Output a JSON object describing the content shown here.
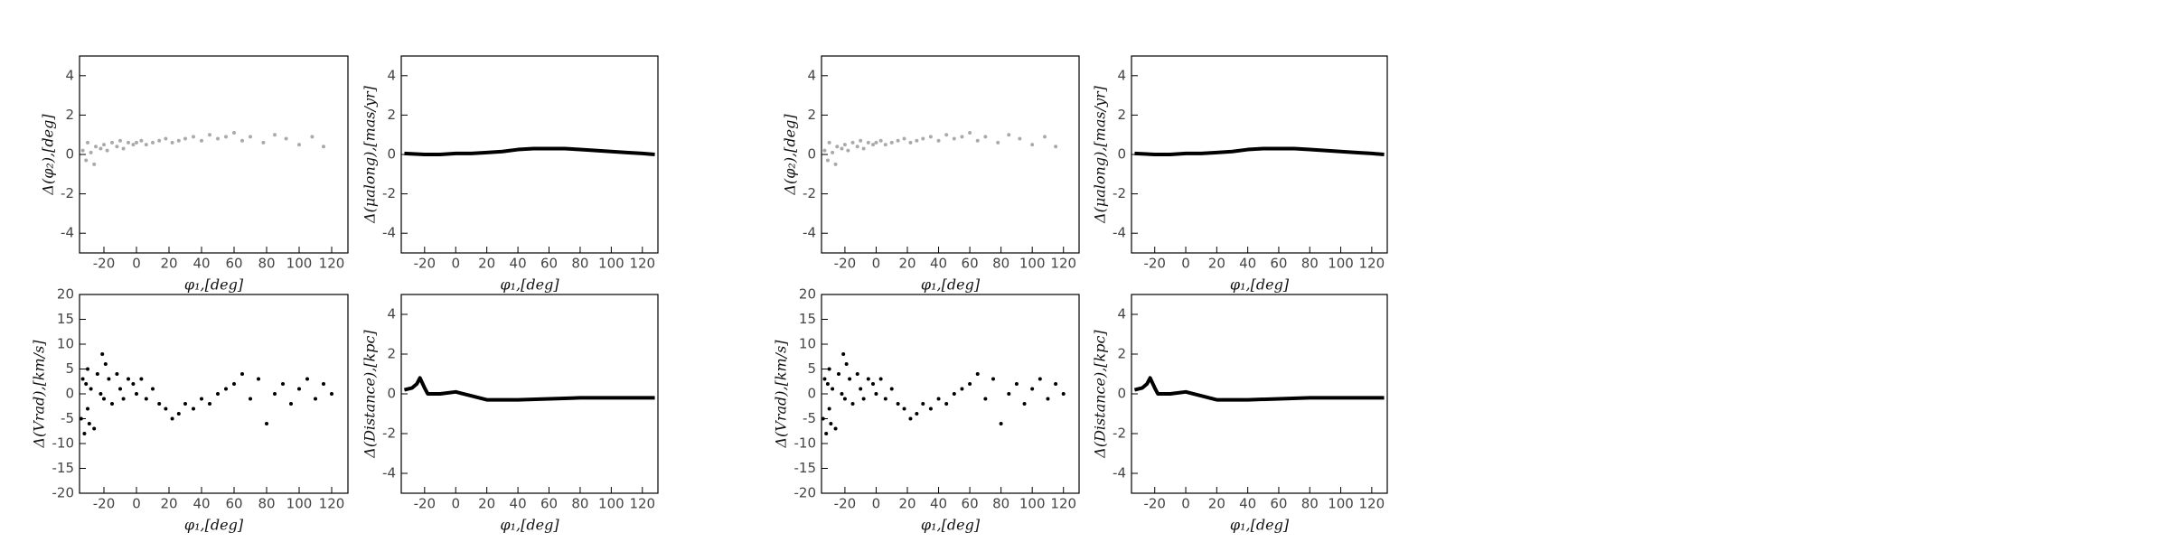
{
  "chart_data": [
    {
      "type": "scatter",
      "ylabel": "Δ(φ₂),[deg]",
      "xlabel": "φ₁,[deg]",
      "color": "#555555",
      "xlim": [
        -35,
        130
      ],
      "ylim": [
        -5,
        5
      ],
      "xticks": [
        -20,
        0,
        20,
        40,
        60,
        80,
        100,
        120
      ],
      "yticks": [
        -4,
        -2,
        0,
        2,
        4
      ],
      "x": [
        -33,
        -31,
        -30,
        -28,
        -26,
        -25,
        -22,
        -20,
        -18,
        -15,
        -12,
        -10,
        -8,
        -5,
        -2,
        0,
        3,
        6,
        10,
        14,
        18,
        22,
        26,
        30,
        35,
        40,
        45,
        50,
        55,
        60,
        65,
        70,
        78,
        85,
        92,
        100,
        108,
        115
      ],
      "y": [
        0.2,
        -0.3,
        0.6,
        0.1,
        -0.5,
        0.4,
        0.3,
        0.5,
        0.2,
        0.6,
        0.4,
        0.7,
        0.3,
        0.6,
        0.5,
        0.6,
        0.7,
        0.5,
        0.6,
        0.7,
        0.8,
        0.6,
        0.7,
        0.8,
        0.9,
        0.7,
        1.0,
        0.8,
        0.9,
        1.1,
        0.7,
        0.9,
        0.6,
        1.0,
        0.8,
        0.5,
        0.9,
        0.4
      ]
    },
    {
      "type": "line",
      "ylabel": "Δ(μalong),[mas/yr]",
      "xlabel": "φ₁,[deg]",
      "color": "#000000",
      "xlim": [
        -35,
        130
      ],
      "ylim": [
        -5,
        5
      ],
      "xticks": [
        -20,
        0,
        20,
        40,
        60,
        80,
        100,
        120
      ],
      "yticks": [
        -4,
        -2,
        0,
        2,
        4
      ],
      "x": [
        -33,
        -20,
        -10,
        0,
        10,
        20,
        30,
        40,
        50,
        60,
        70,
        80,
        90,
        100,
        110,
        120,
        128
      ],
      "values": [
        0.05,
        0.0,
        0.0,
        0.05,
        0.05,
        0.1,
        0.15,
        0.25,
        0.3,
        0.3,
        0.3,
        0.25,
        0.2,
        0.15,
        0.1,
        0.05,
        0.0
      ]
    },
    {
      "type": "scatter",
      "ylabel": "Δ(Vrad),[km/s]",
      "xlabel": "φ₁,[deg]",
      "color": "#000000",
      "xlim": [
        -35,
        130
      ],
      "ylim": [
        -20,
        20
      ],
      "xticks": [
        -20,
        0,
        20,
        40,
        60,
        80,
        100,
        120
      ],
      "yticks": [
        -20,
        -15,
        -10,
        -5,
        0,
        5,
        10,
        15,
        20
      ],
      "x": [
        -34,
        -33,
        -32,
        -31,
        -30,
        -30,
        -29,
        -28,
        -26,
        -24,
        -22,
        -21,
        -20,
        -19,
        -17,
        -15,
        -12,
        -10,
        -8,
        -5,
        -2,
        0,
        3,
        6,
        10,
        14,
        18,
        22,
        26,
        30,
        35,
        40,
        45,
        50,
        55,
        60,
        65,
        70,
        75,
        80,
        85,
        90,
        95,
        100,
        105,
        110,
        115,
        120
      ],
      "y": [
        -5,
        3,
        -8,
        2,
        -3,
        5,
        -6,
        1,
        -7,
        4,
        0,
        8,
        -1,
        6,
        3,
        -2,
        4,
        1,
        -1,
        3,
        2,
        0,
        3,
        -1,
        1,
        -2,
        -3,
        -5,
        -4,
        -2,
        -3,
        -1,
        -2,
        0,
        1,
        2,
        4,
        -1,
        3,
        -6,
        0,
        2,
        -2,
        1,
        3,
        -1,
        2,
        0
      ]
    },
    {
      "type": "line",
      "ylabel": "Δ(Distance),[kpc]",
      "xlabel": "φ₁,[deg]",
      "color": "#000000",
      "xlim": [
        -35,
        130
      ],
      "ylim": [
        -5,
        5
      ],
      "xticks": [
        -20,
        0,
        20,
        40,
        60,
        80,
        100,
        120
      ],
      "yticks": [
        -4,
        -2,
        0,
        2,
        4
      ],
      "x": [
        -33,
        -28,
        -25,
        -23,
        -20,
        -18,
        -10,
        0,
        10,
        20,
        40,
        80,
        128
      ],
      "values": [
        0.2,
        0.3,
        0.5,
        0.8,
        0.3,
        0.0,
        0.0,
        0.1,
        -0.1,
        -0.3,
        -0.3,
        -0.2,
        -0.2
      ]
    },
    {
      "type": "scatter",
      "ylabel": "Δ(φ₂),[deg]",
      "xlabel": "φ₁,[deg]",
      "color": "#555555",
      "xlim": [
        -35,
        130
      ],
      "ylim": [
        -5,
        5
      ],
      "xticks": [
        -20,
        0,
        20,
        40,
        60,
        80,
        100,
        120
      ],
      "yticks": [
        -4,
        -2,
        0,
        2,
        4
      ],
      "x": [
        -33,
        -31,
        -30,
        -28,
        -26,
        -25,
        -22,
        -20,
        -18,
        -15,
        -12,
        -10,
        -8,
        -5,
        -2,
        0,
        3,
        6,
        10,
        14,
        18,
        22,
        26,
        30,
        35,
        40,
        45,
        50,
        55,
        60,
        65,
        70,
        78,
        85,
        92,
        100,
        108,
        115
      ],
      "y": [
        0.2,
        -0.3,
        0.6,
        0.1,
        -0.5,
        0.4,
        0.3,
        0.5,
        0.2,
        0.6,
        0.4,
        0.7,
        0.3,
        0.6,
        0.5,
        0.6,
        0.7,
        0.5,
        0.6,
        0.7,
        0.8,
        0.6,
        0.7,
        0.8,
        0.9,
        0.7,
        1.0,
        0.8,
        0.9,
        1.1,
        0.7,
        0.9,
        0.6,
        1.0,
        0.8,
        0.5,
        0.9,
        0.4
      ]
    },
    {
      "type": "line",
      "ylabel": "Δ(μalong),[mas/yr]",
      "xlabel": "φ₁,[deg]",
      "color": "#000000",
      "xlim": [
        -35,
        130
      ],
      "ylim": [
        -5,
        5
      ],
      "xticks": [
        -20,
        0,
        20,
        40,
        60,
        80,
        100,
        120
      ],
      "yticks": [
        -4,
        -2,
        0,
        2,
        4
      ],
      "x": [
        -33,
        -20,
        -10,
        0,
        10,
        20,
        30,
        40,
        50,
        60,
        70,
        80,
        90,
        100,
        110,
        120,
        128
      ],
      "values": [
        0.05,
        0.0,
        0.0,
        0.05,
        0.05,
        0.1,
        0.15,
        0.25,
        0.3,
        0.3,
        0.3,
        0.25,
        0.2,
        0.15,
        0.1,
        0.05,
        0.0
      ]
    },
    {
      "type": "scatter",
      "ylabel": "Δ(Vrad),[km/s]",
      "xlabel": "φ₁,[deg]",
      "color": "#000000",
      "xlim": [
        -35,
        130
      ],
      "ylim": [
        -20,
        20
      ],
      "xticks": [
        -20,
        0,
        20,
        40,
        60,
        80,
        100,
        120
      ],
      "yticks": [
        -20,
        -15,
        -10,
        -5,
        0,
        5,
        10,
        15,
        20
      ],
      "x": [
        -34,
        -33,
        -32,
        -31,
        -30,
        -30,
        -29,
        -28,
        -26,
        -24,
        -22,
        -21,
        -20,
        -19,
        -17,
        -15,
        -12,
        -10,
        -8,
        -5,
        -2,
        0,
        3,
        6,
        10,
        14,
        18,
        22,
        26,
        30,
        35,
        40,
        45,
        50,
        55,
        60,
        65,
        70,
        75,
        80,
        85,
        90,
        95,
        100,
        105,
        110,
        115,
        120
      ],
      "y": [
        -5,
        3,
        -8,
        2,
        -3,
        5,
        -6,
        1,
        -7,
        4,
        0,
        8,
        -1,
        6,
        3,
        -2,
        4,
        1,
        -1,
        3,
        2,
        0,
        3,
        -1,
        1,
        -2,
        -3,
        -5,
        -4,
        -2,
        -3,
        -1,
        -2,
        0,
        1,
        2,
        4,
        -1,
        3,
        -6,
        0,
        2,
        -2,
        1,
        3,
        -1,
        2,
        0
      ]
    },
    {
      "type": "line",
      "ylabel": "Δ(Distance),[kpc]",
      "xlabel": "φ₁,[deg]",
      "color": "#000000",
      "xlim": [
        -35,
        130
      ],
      "ylim": [
        -5,
        5
      ],
      "xticks": [
        -20,
        0,
        20,
        40,
        60,
        80,
        100,
        120
      ],
      "yticks": [
        -4,
        -2,
        0,
        2,
        4
      ],
      "x": [
        -33,
        -28,
        -25,
        -23,
        -20,
        -18,
        -10,
        0,
        10,
        20,
        40,
        80,
        128
      ],
      "values": [
        0.2,
        0.3,
        0.5,
        0.8,
        0.3,
        0.0,
        0.0,
        0.1,
        -0.1,
        -0.3,
        -0.3,
        -0.2,
        -0.2
      ]
    }
  ]
}
